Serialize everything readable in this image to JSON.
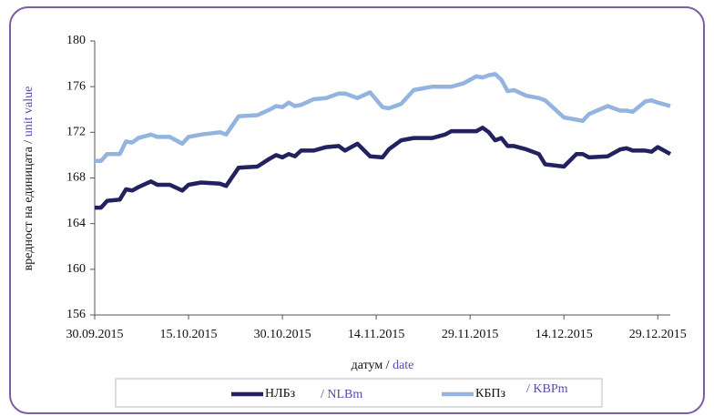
{
  "chart_data": {
    "type": "line",
    "ylabel": "вредност на единицата /",
    "ylabel_en": "unit value",
    "xlabel": "датум /",
    "xlabel_en": "date",
    "x": [
      "30.09.2015",
      "01.10.2015",
      "02.10.2015",
      "04.10.2015",
      "05.10.2015",
      "06.10.2015",
      "07.10.2015",
      "09.10.2015",
      "10.10.2015",
      "12.10.2015",
      "14.10.2015",
      "15.10.2015",
      "17.10.2015",
      "20.10.2015",
      "21.10.2015",
      "23.10.2015",
      "26.10.2015",
      "28.10.2015",
      "29.10.2015",
      "30.10.2015",
      "31.10.2015",
      "01.11.2015",
      "02.11.2015",
      "04.11.2015",
      "06.11.2015",
      "08.11.2015",
      "09.11.2015",
      "11.11.2015",
      "13.11.2015",
      "15.11.2015",
      "16.11.2015",
      "18.11.2015",
      "20.11.2015",
      "23.11.2015",
      "25.11.2015",
      "26.11.2015",
      "28.11.2015",
      "30.11.2015",
      "01.12.2015",
      "02.12.2015",
      "03.12.2015",
      "04.12.2015",
      "05.12.2015",
      "06.12.2015",
      "08.12.2015",
      "10.12.2015",
      "11.12.2015",
      "14.12.2015",
      "16.12.2015",
      "17.12.2015",
      "18.12.2015",
      "21.12.2015",
      "23.12.2015",
      "24.12.2015",
      "25.12.2015",
      "27.12.2015",
      "28.12.2015",
      "29.12.2015",
      "31.12.2015"
    ],
    "series": [
      {
        "name": "НЛБз",
        "color": "#23215f",
        "values": [
          165.4,
          165.4,
          166.0,
          166.1,
          167.0,
          166.9,
          167.2,
          167.7,
          167.4,
          167.4,
          166.9,
          167.4,
          167.6,
          167.5,
          167.3,
          168.9,
          169.0,
          169.7,
          170.0,
          169.8,
          170.1,
          169.9,
          170.4,
          170.4,
          170.7,
          170.8,
          170.4,
          171.0,
          169.9,
          169.8,
          170.5,
          171.3,
          171.5,
          171.5,
          171.8,
          172.1,
          172.1,
          172.1,
          172.4,
          172.0,
          171.3,
          171.5,
          170.8,
          170.8,
          170.5,
          170.1,
          169.2,
          169.0,
          170.1,
          170.1,
          169.8,
          169.9,
          170.5,
          170.6,
          170.4,
          170.4,
          170.3,
          170.7,
          170.1
        ]
      },
      {
        "name": "КБПз",
        "color": "#93b4de",
        "values": [
          169.5,
          169.5,
          170.1,
          170.1,
          171.2,
          171.1,
          171.5,
          171.8,
          171.6,
          171.6,
          171.0,
          171.6,
          171.8,
          172.0,
          171.8,
          173.4,
          173.5,
          174.0,
          174.3,
          174.2,
          174.6,
          174.3,
          174.4,
          174.9,
          175.0,
          175.4,
          175.4,
          175.0,
          175.5,
          174.2,
          174.1,
          174.5,
          175.7,
          176.0,
          176.0,
          176.0,
          176.3,
          176.9,
          176.8,
          177.0,
          177.1,
          176.6,
          175.6,
          175.7,
          175.2,
          175.0,
          174.8,
          173.3,
          173.1,
          173.0,
          173.6,
          174.3,
          173.9,
          173.9,
          173.8,
          174.7,
          174.8,
          174.6,
          174.3
        ]
      }
    ],
    "legend_en": [
      "/ NLBm",
      "/ KBPm"
    ],
    "xlim": [
      "30.09.2015",
      "31.12.2015"
    ],
    "xticks": [
      "30.09.2015",
      "15.10.2015",
      "30.10.2015",
      "14.11.2015",
      "29.11.2015",
      "14.12.2015",
      "29.12.2015"
    ],
    "ylim": [
      156,
      180
    ],
    "yticks": [
      156,
      160,
      164,
      168,
      172,
      176,
      180
    ],
    "grid": false
  }
}
